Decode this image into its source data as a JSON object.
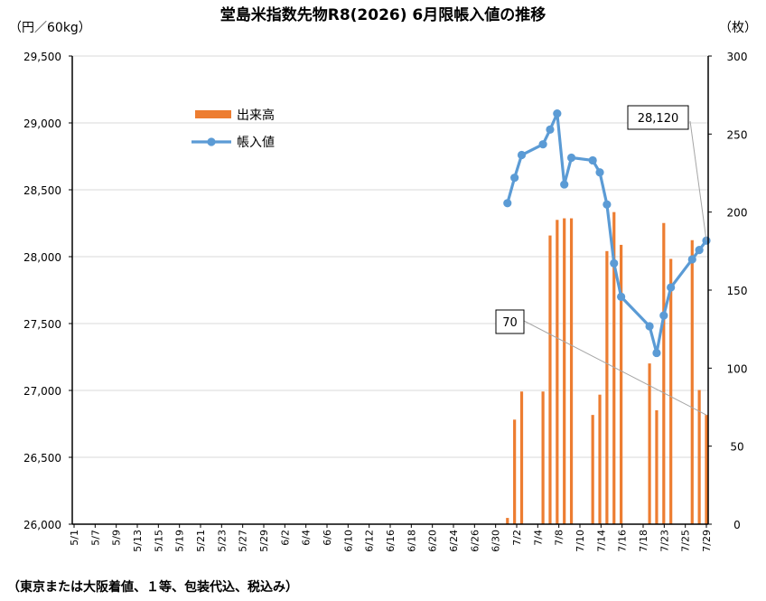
{
  "chart_data": {
    "type": "bar+line",
    "title": "堂島米指数先物R8(2026) 6月限帳入値の推移",
    "left_axis_unit": "（円／60kg）",
    "right_axis_unit": "（枚）",
    "footnote": "（東京または大阪着値、１等、包装代込、税込み）",
    "left_ylim": [
      26000,
      29500
    ],
    "left_yticks": [
      26000,
      26500,
      27000,
      27500,
      28000,
      28500,
      29000,
      29500
    ],
    "left_ytick_labels": [
      "26,000",
      "26,500",
      "27,000",
      "27,500",
      "28,000",
      "28,500",
      "29,000",
      "29,500"
    ],
    "right_ylim": [
      0,
      300
    ],
    "right_yticks": [
      0,
      50,
      100,
      150,
      200,
      250,
      300
    ],
    "right_ytick_labels": [
      "0",
      "50",
      "100",
      "150",
      "200",
      "250",
      "300"
    ],
    "grid": true,
    "legend_position": "upper-left",
    "x_start": "2026-05-01",
    "x_end": "2026-07-29",
    "x_tick_labels": [
      "5/1",
      "5/7",
      "5/9",
      "5/13",
      "5/15",
      "5/19",
      "5/21",
      "5/23",
      "5/27",
      "5/29",
      "6/2",
      "6/4",
      "6/6",
      "6/10",
      "6/12",
      "6/16",
      "6/18",
      "6/20",
      "6/24",
      "6/26",
      "6/30",
      "7/2",
      "7/4",
      "7/8",
      "7/10",
      "7/14",
      "7/16",
      "7/18",
      "7/23",
      "7/25",
      "7/29"
    ],
    "series": [
      {
        "name": "出来高",
        "type": "bar",
        "axis": "right",
        "color": "#ED7D31",
        "points": [
          {
            "x": "2026-07-01",
            "y": 4
          },
          {
            "x": "2026-07-02",
            "y": 67
          },
          {
            "x": "2026-07-03",
            "y": 85
          },
          {
            "x": "2026-07-06",
            "y": 85
          },
          {
            "x": "2026-07-07",
            "y": 185
          },
          {
            "x": "2026-07-08",
            "y": 195
          },
          {
            "x": "2026-07-09",
            "y": 196
          },
          {
            "x": "2026-07-10",
            "y": 196
          },
          {
            "x": "2026-07-13",
            "y": 70
          },
          {
            "x": "2026-07-14",
            "y": 83
          },
          {
            "x": "2026-07-15",
            "y": 175
          },
          {
            "x": "2026-07-16",
            "y": 200
          },
          {
            "x": "2026-07-17",
            "y": 179
          },
          {
            "x": "2026-07-21",
            "y": 103
          },
          {
            "x": "2026-07-22",
            "y": 73
          },
          {
            "x": "2026-07-23",
            "y": 193
          },
          {
            "x": "2026-07-24",
            "y": 170
          },
          {
            "x": "2026-07-27",
            "y": 182
          },
          {
            "x": "2026-07-28",
            "y": 86
          },
          {
            "x": "2026-07-29",
            "y": 70
          }
        ]
      },
      {
        "name": "帳入値",
        "type": "line",
        "axis": "left",
        "color": "#5B9BD5",
        "points": [
          {
            "x": "2026-07-01",
            "y": 28400
          },
          {
            "x": "2026-07-02",
            "y": 28590
          },
          {
            "x": "2026-07-03",
            "y": 28760
          },
          {
            "x": "2026-07-06",
            "y": 28840
          },
          {
            "x": "2026-07-07",
            "y": 28950
          },
          {
            "x": "2026-07-08",
            "y": 29070
          },
          {
            "x": "2026-07-09",
            "y": 28540
          },
          {
            "x": "2026-07-10",
            "y": 28740
          },
          {
            "x": "2026-07-13",
            "y": 28720
          },
          {
            "x": "2026-07-14",
            "y": 28630
          },
          {
            "x": "2026-07-15",
            "y": 28390
          },
          {
            "x": "2026-07-16",
            "y": 27950
          },
          {
            "x": "2026-07-17",
            "y": 27700
          },
          {
            "x": "2026-07-21",
            "y": 27480
          },
          {
            "x": "2026-07-22",
            "y": 27280
          },
          {
            "x": "2026-07-23",
            "y": 27560
          },
          {
            "x": "2026-07-24",
            "y": 27770
          },
          {
            "x": "2026-07-27",
            "y": 27980
          },
          {
            "x": "2026-07-28",
            "y": 28050
          },
          {
            "x": "2026-07-29",
            "y": 28120
          }
        ]
      }
    ],
    "annotations": [
      {
        "text": "28,120",
        "series": "帳入値",
        "x": "2026-07-29"
      },
      {
        "text": "70",
        "series": "出来高",
        "x": "2026-07-29"
      }
    ]
  }
}
